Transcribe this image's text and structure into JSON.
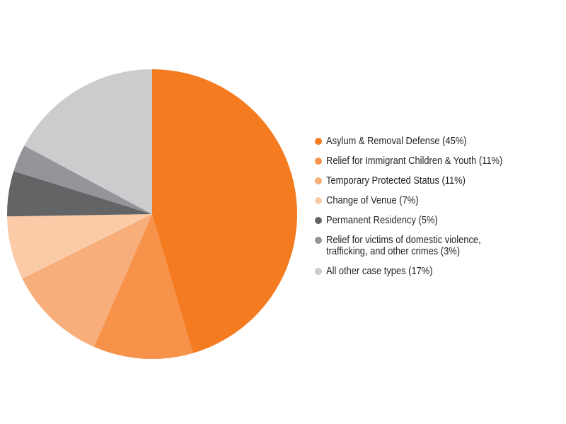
{
  "chart_data": {
    "type": "pie",
    "start": "top, clockwise",
    "legend_position": "right",
    "slices": [
      {
        "label": "Asylum & Removal Defense (45%)",
        "value": 45,
        "color": "#F47B20"
      },
      {
        "label": "Relief for Immigrant Children & Youth (11%)",
        "value": 11,
        "color": "#F6924A"
      },
      {
        "label": "Temporary Protected Status (11%)",
        "value": 11,
        "color": "#F8AE7A"
      },
      {
        "label": "Change of Venue (7%)",
        "value": 7,
        "color": "#FBCBA8"
      },
      {
        "label": "Permanent Residency (5%)",
        "value": 5,
        "color": "#636466"
      },
      {
        "label_line1": "Relief for victims of domestic violence,",
        "label_line2": "trafficking, and other crimes (3%)",
        "value": 3,
        "color": "#939598"
      },
      {
        "label": "All other case types (17%)",
        "value": 17,
        "color": "#CBCCCE"
      }
    ]
  }
}
